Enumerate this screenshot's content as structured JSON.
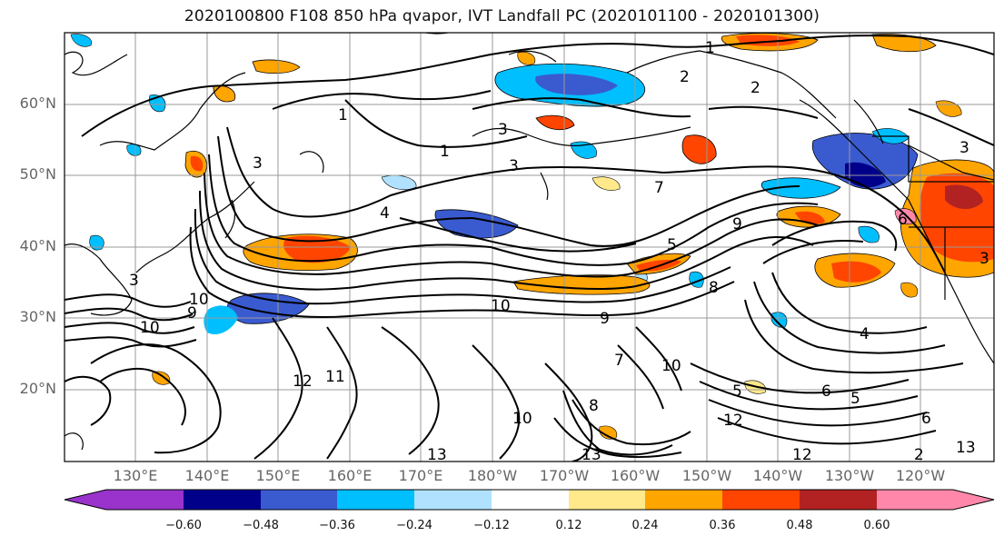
{
  "title": "2020100800 F108 850 hPa qvapor, IVT Landfall PC (2020101100 - 2020101300)",
  "lat_labels": [
    "60°N",
    "50°N",
    "40°N",
    "30°N",
    "20°N"
  ],
  "lon_labels": [
    "130°E",
    "140°E",
    "150°E",
    "160°E",
    "170°E",
    "180°W",
    "170°W",
    "160°W",
    "150°W",
    "140°W",
    "130°W",
    "120°W"
  ],
  "colorbar": {
    "ticks": [
      "−0.60",
      "−0.48",
      "−0.36",
      "−0.24",
      "−0.12",
      "0.12",
      "0.24",
      "0.36",
      "0.48",
      "0.60"
    ],
    "colors": [
      "#9933cc",
      "#00008b",
      "#3a5bd0",
      "#00bfff",
      "#b0e2ff",
      "#ffffff",
      "#ffe98a",
      "#ffa500",
      "#ff4500",
      "#b22222",
      "#ff88aa"
    ]
  },
  "contour_labels": [
    "1",
    "1",
    "2",
    "2",
    "3",
    "3",
    "3",
    "3",
    "3",
    "4",
    "4",
    "5",
    "6",
    "6",
    "8",
    "8",
    "9",
    "9",
    "9",
    "10",
    "10",
    "10",
    "10",
    "10",
    "11",
    "12",
    "12",
    "12",
    "13",
    "13",
    "13",
    "1",
    "2",
    "5",
    "5",
    "3",
    "7",
    "7",
    "6"
  ]
}
